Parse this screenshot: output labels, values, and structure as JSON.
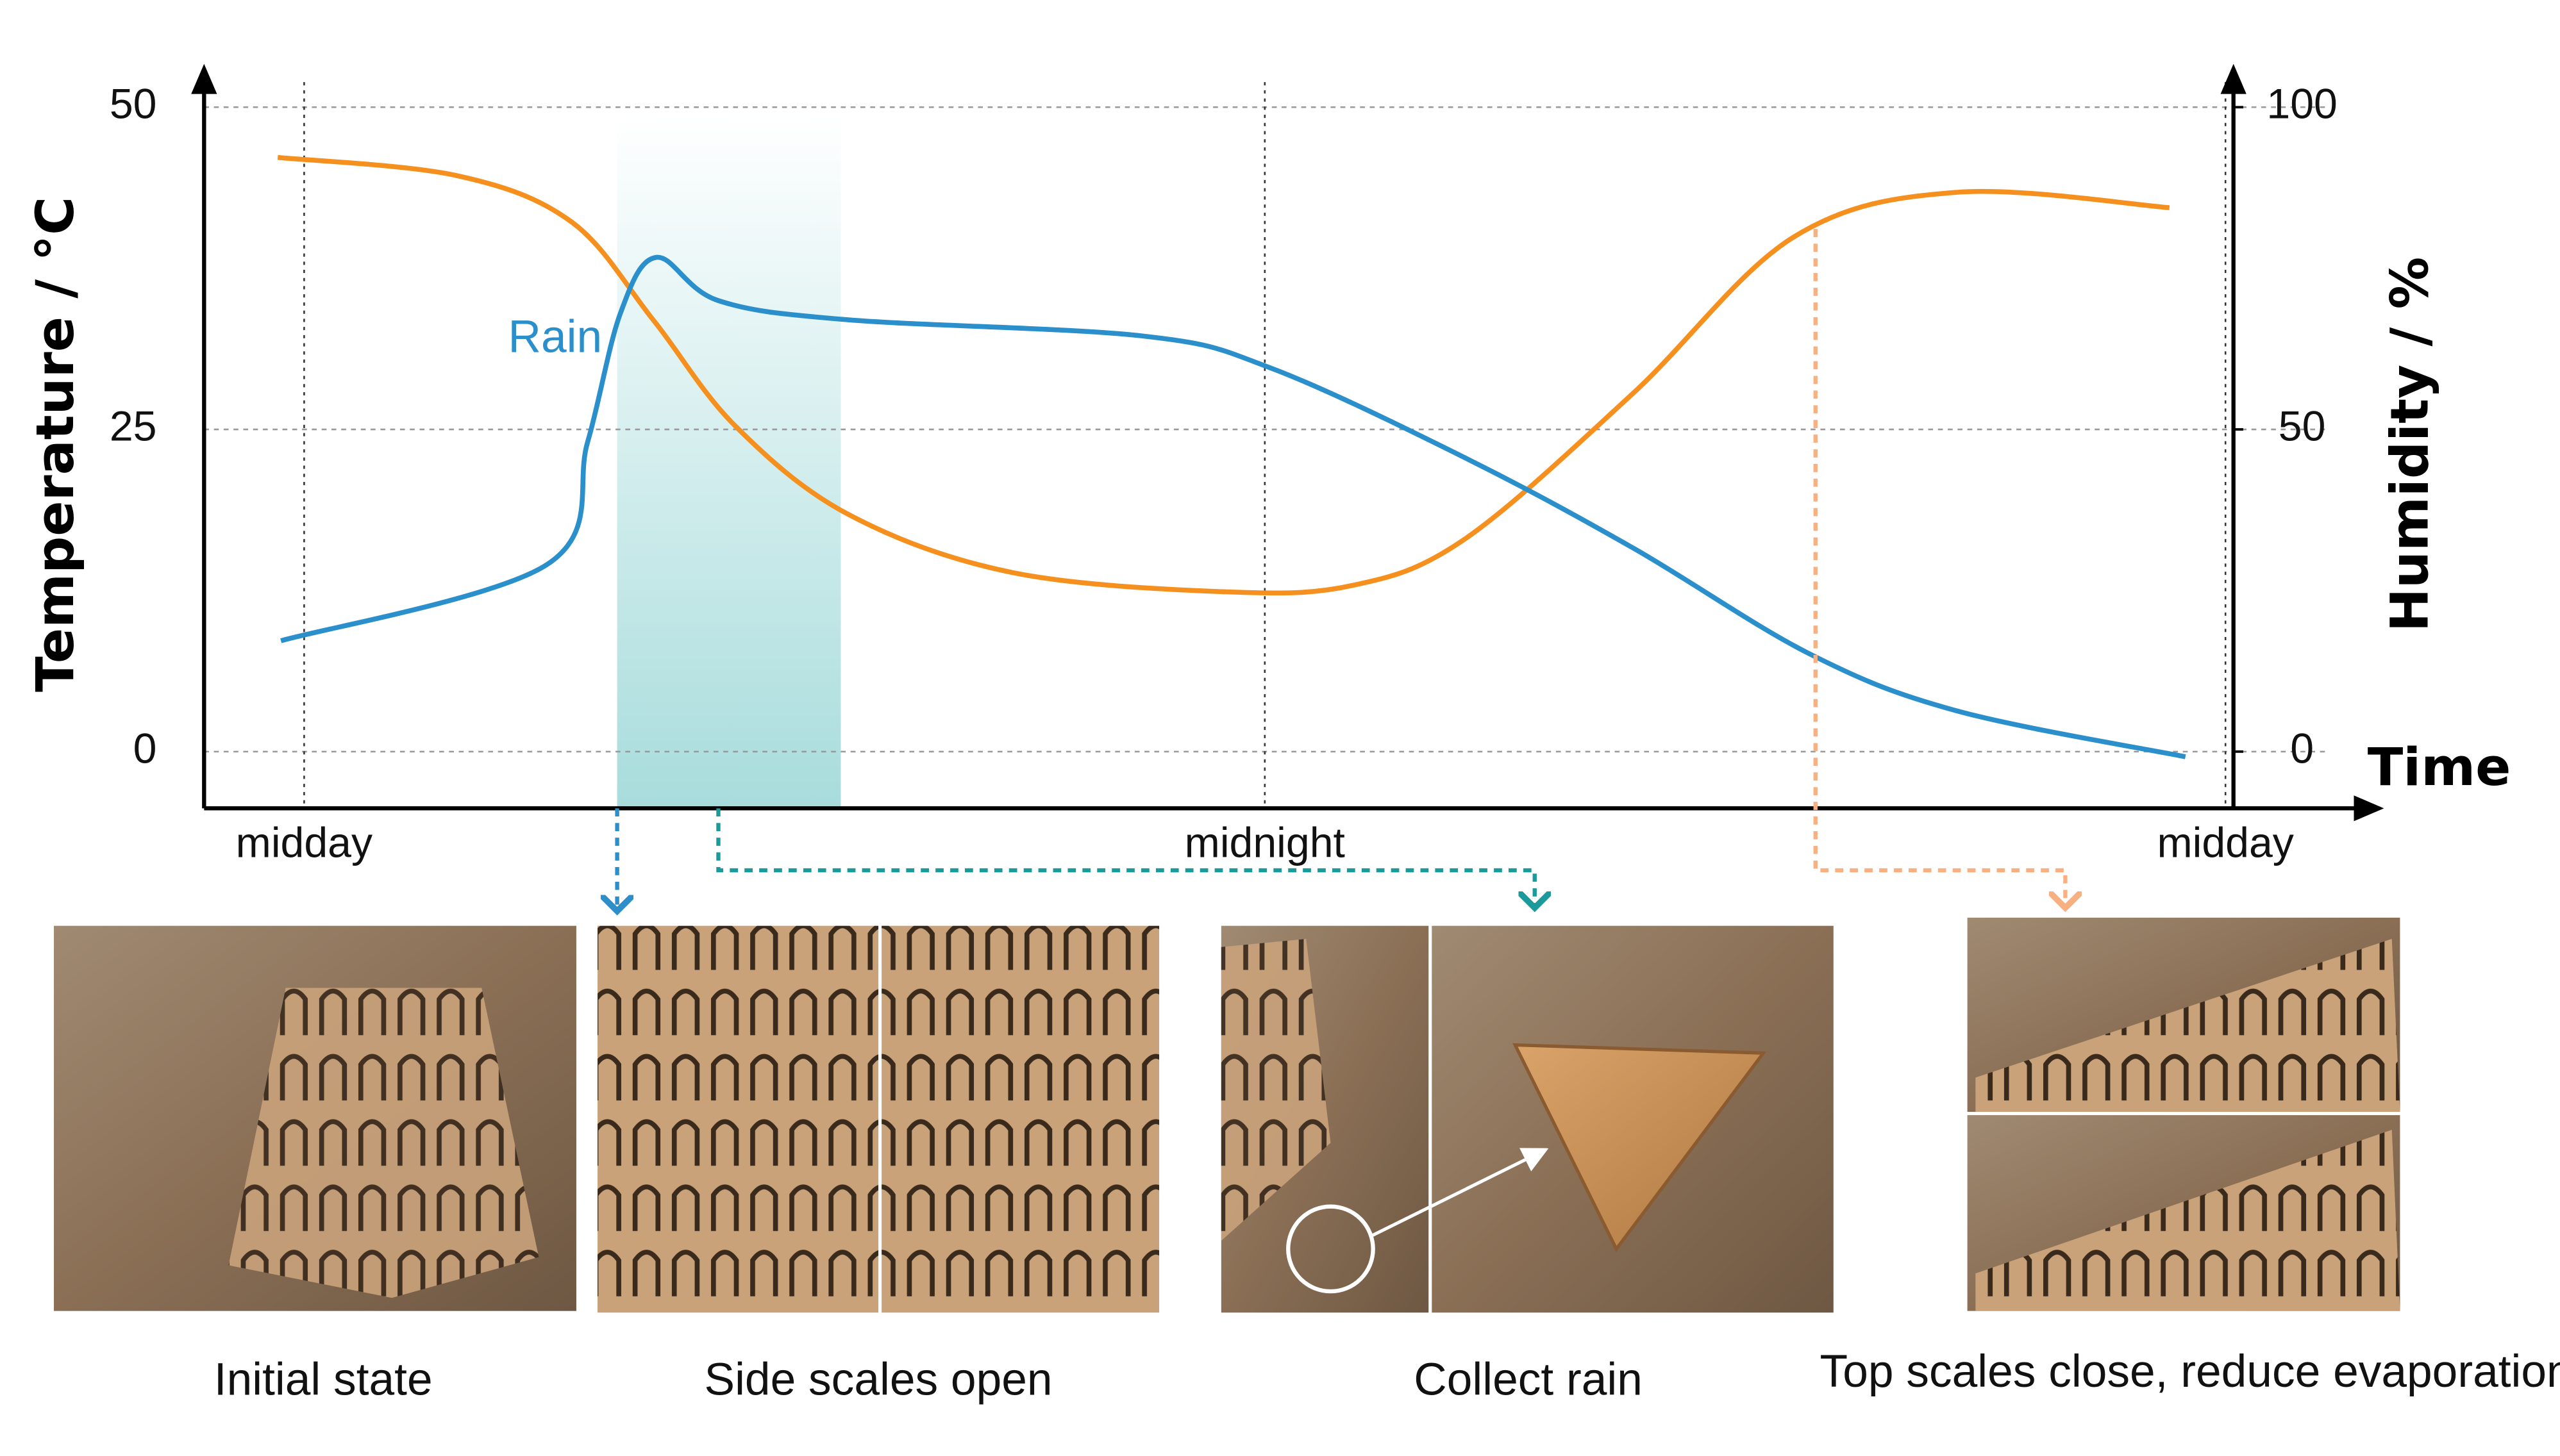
{
  "chart_data": {
    "type": "line",
    "y_label": "Temperature / °C",
    "y2_label": "Humidity / %",
    "x_label": "Time",
    "annotation": "Rain",
    "xlim": [
      -1.25,
      24.1
    ],
    "xticks": [
      {
        "value": 0,
        "label": "midday"
      },
      {
        "value": 12,
        "label": "midnight"
      },
      {
        "value": 24,
        "label": "midday"
      }
    ],
    "ylim": [
      -4.4,
      52.2
    ],
    "yticks": [
      0,
      25,
      50
    ],
    "y2lim": [
      -8.8,
      104.4
    ],
    "y2ticks": [
      0,
      50,
      100
    ],
    "grid": true,
    "series": [
      {
        "name": "Temperature",
        "color": "#f5901e",
        "x": [
          -0.33,
          1.9,
          3.34,
          4.36,
          5.38,
          6.8,
          8.84,
          11.5,
          13.1,
          14.5,
          16.6,
          18.6,
          20.65,
          23.3
        ],
        "values": [
          46.1,
          44.7,
          41.1,
          33.5,
          25.3,
          18.4,
          13.9,
          12.4,
          12.9,
          16.5,
          27.8,
          39.9,
          43.4,
          42.2
        ]
      },
      {
        "name": "Humidity",
        "color": "#2a8fcb",
        "axis": "y2",
        "x": [
          -0.29,
          3.03,
          3.54,
          3.95,
          4.4,
          5.17,
          6.8,
          10.47,
          12.08,
          14.5,
          16.6,
          18.8,
          20.65,
          23.5
        ],
        "values": [
          17.2,
          29,
          48,
          68,
          76.7,
          70,
          67,
          64.5,
          59.5,
          45.6,
          31.6,
          15.2,
          6.3,
          -0.8
        ]
      }
    ]
  },
  "panels": [
    {
      "caption": "Initial state"
    },
    {
      "caption": "Side scales open"
    },
    {
      "caption": "Collect rain"
    },
    {
      "caption": "Top scales close, reduce evaporation"
    }
  ]
}
